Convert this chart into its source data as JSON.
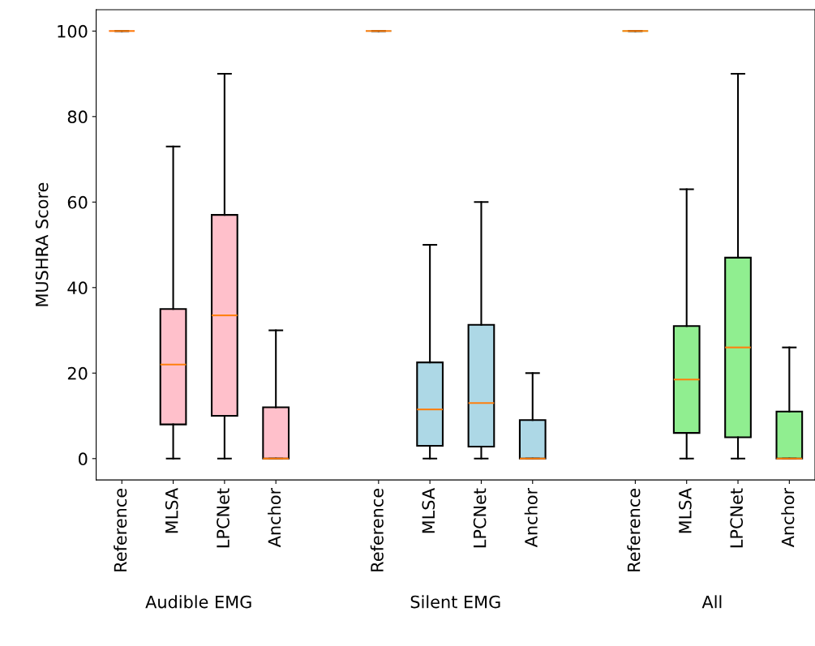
{
  "chart_data": {
    "type": "box",
    "ylabel": "MUSHRA Score",
    "ylim": [
      -5,
      105
    ],
    "yticks": [
      0,
      20,
      40,
      60,
      80,
      100
    ],
    "grid": false,
    "legend": false,
    "categories": [
      "Reference",
      "MLSA",
      "LPCNet",
      "Anchor",
      null,
      "Reference",
      "MLSA",
      "LPCNet",
      "Anchor",
      null,
      "Reference",
      "MLSA",
      "LPCNet",
      "Anchor"
    ],
    "colors": [
      "#ffc0cb",
      "#ffc0cb",
      "#ffc0cb",
      "#ffc0cb",
      null,
      "#add8e6",
      "#add8e6",
      "#add8e6",
      "#add8e6",
      null,
      "#90ee90",
      "#90ee90",
      "#90ee90",
      "#90ee90"
    ],
    "boxes": [
      {
        "low": 100,
        "q1": 100,
        "median": 100,
        "q3": 100,
        "high": 100
      },
      {
        "low": 0,
        "q1": 8,
        "median": 22,
        "q3": 35,
        "high": 73
      },
      {
        "low": 0,
        "q1": 10,
        "median": 33.5,
        "q3": 57,
        "high": 90
      },
      {
        "low": 0,
        "q1": 0,
        "median": 0,
        "q3": 12,
        "high": 30
      },
      null,
      {
        "low": 100,
        "q1": 100,
        "median": 100,
        "q3": 100,
        "high": 100
      },
      {
        "low": 0,
        "q1": 3,
        "median": 11.5,
        "q3": 22.5,
        "high": 50
      },
      {
        "low": 0,
        "q1": 2.8,
        "median": 13,
        "q3": 31.3,
        "high": 60
      },
      {
        "low": 0,
        "q1": 0,
        "median": 0,
        "q3": 9,
        "high": 20
      },
      null,
      {
        "low": 100,
        "q1": 100,
        "median": 100,
        "q3": 100,
        "high": 100
      },
      {
        "low": 0,
        "q1": 6,
        "median": 18.5,
        "q3": 31,
        "high": 63
      },
      {
        "low": 0,
        "q1": 5,
        "median": 26,
        "q3": 47,
        "high": 90
      },
      {
        "low": 0,
        "q1": 0,
        "median": 0,
        "q3": 11,
        "high": 26
      }
    ],
    "annotations": [
      "Audible EMG",
      "Silent EMG",
      "All"
    ]
  }
}
